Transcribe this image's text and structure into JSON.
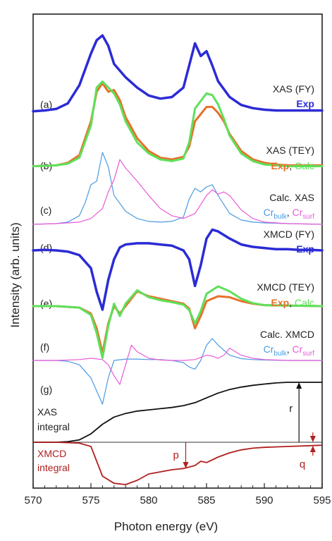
{
  "chart_data": {
    "type": "line",
    "ylabel": "Intensity (arb. units)",
    "xlabel": "Photon energy (eV)",
    "xlim": [
      570,
      595
    ],
    "xticks": [
      "570",
      "575",
      "580",
      "585",
      "590",
      "595"
    ],
    "grid": false,
    "colors": {
      "exp": "#2b2bd6",
      "exp_orange": "#e8702a",
      "calc": "#5ee05a",
      "cr_bulk": "#4b9be0",
      "cr_surf": "#e85ad8",
      "xas_integral": "#111111",
      "xmcd_integral": "#b0201f"
    },
    "panels": [
      {
        "id": "a",
        "tag": "(a)",
        "title": "XAS (FY)",
        "legend": [
          "Exp"
        ],
        "series": [
          {
            "name": "Exp",
            "color_key": "exp",
            "x": [
              570,
              571,
              572,
              573,
              574,
              575,
              575.5,
              576,
              576.5,
              577,
              578,
              579,
              580,
              581,
              582,
              583,
              584,
              584.5,
              585,
              585.5,
              586,
              587,
              588,
              589,
              590,
              591,
              592,
              593,
              594,
              595
            ],
            "y": [
              0.02,
              0.03,
              0.05,
              0.12,
              0.35,
              0.75,
              0.92,
              0.98,
              0.85,
              0.62,
              0.45,
              0.32,
              0.22,
              0.18,
              0.2,
              0.32,
              0.88,
              0.72,
              0.78,
              0.6,
              0.4,
              0.2,
              0.1,
              0.06,
              0.04,
              0.03,
              0.03,
              0.03,
              0.03,
              0.03
            ]
          }
        ]
      },
      {
        "id": "b",
        "tag": "(b)",
        "title": "XAS (TEY)",
        "legend": [
          "Exp",
          "Calc"
        ],
        "series": [
          {
            "name": "Exp",
            "color_key": "exp_orange",
            "x": [
              570,
              572,
              573,
              574,
              575,
              575.5,
              576,
              576.5,
              577,
              577.5,
              578,
              579,
              580,
              581,
              582,
              583,
              583.5,
              584,
              585,
              585.5,
              586,
              586.5,
              587,
              588,
              589,
              590,
              591,
              592,
              593,
              594,
              595
            ],
            "y": [
              0.02,
              0.03,
              0.06,
              0.15,
              0.55,
              0.9,
              1.0,
              0.9,
              0.92,
              0.8,
              0.6,
              0.35,
              0.2,
              0.12,
              0.1,
              0.13,
              0.25,
              0.55,
              0.72,
              0.72,
              0.65,
              0.55,
              0.4,
              0.2,
              0.1,
              0.06,
              0.04,
              0.03,
              0.03,
              0.03,
              0.03
            ]
          },
          {
            "name": "Calc",
            "color_key": "calc",
            "x": [
              570,
              572,
              573,
              574,
              575,
              575.5,
              576,
              576.5,
              577,
              577.5,
              578,
              579,
              580,
              581,
              582,
              583,
              583.5,
              584,
              585,
              585.5,
              586,
              586.5,
              587,
              588,
              589,
              590,
              591,
              592,
              593,
              594,
              595
            ],
            "y": [
              0.02,
              0.03,
              0.05,
              0.12,
              0.5,
              0.95,
              1.02,
              0.95,
              0.88,
              0.75,
              0.55,
              0.3,
              0.17,
              0.1,
              0.08,
              0.11,
              0.3,
              0.7,
              0.88,
              0.86,
              0.75,
              0.58,
              0.38,
              0.17,
              0.08,
              0.04,
              0.03,
              0.02,
              0.02,
              0.02,
              0.02
            ]
          }
        ]
      },
      {
        "id": "c",
        "tag": "(c)",
        "title": "Calc. XAS",
        "legend": [
          "Cr",
          "Cr"
        ],
        "legend_sub": [
          "bulk",
          "surf"
        ],
        "series": [
          {
            "name": "Crbulk",
            "color_key": "cr_bulk",
            "x": [
              570,
              572,
              573,
              574,
              574.5,
              575,
              575.5,
              576,
              576.5,
              577,
              578,
              579,
              580,
              581,
              582,
              583,
              583.5,
              584,
              584.5,
              585,
              585.5,
              586,
              587,
              588,
              589,
              590,
              592,
              595
            ],
            "y": [
              0.0,
              0.01,
              0.03,
              0.12,
              0.3,
              0.55,
              0.6,
              1.0,
              0.8,
              0.4,
              0.18,
              0.08,
              0.04,
              0.03,
              0.04,
              0.1,
              0.35,
              0.5,
              0.45,
              0.52,
              0.55,
              0.4,
              0.15,
              0.06,
              0.03,
              0.02,
              0.01,
              0.0
            ]
          },
          {
            "name": "Crsurf",
            "color_key": "cr_surf",
            "x": [
              570,
              572,
              574,
              575,
              576,
              576.5,
              577,
              577.5,
              578,
              579,
              580,
              581,
              582,
              583,
              584,
              585,
              585.5,
              586,
              586.5,
              587,
              588,
              589,
              590,
              592,
              595
            ],
            "y": [
              0.0,
              0.01,
              0.03,
              0.08,
              0.22,
              0.45,
              0.62,
              0.9,
              0.78,
              0.6,
              0.4,
              0.22,
              0.12,
              0.08,
              0.15,
              0.4,
              0.48,
              0.42,
              0.45,
              0.4,
              0.2,
              0.08,
              0.03,
              0.01,
              0.0
            ]
          }
        ]
      },
      {
        "id": "d",
        "tag": "(d)",
        "title": "XMCD (FY)",
        "legend": [
          "Exp"
        ],
        "series": [
          {
            "name": "Exp",
            "color_key": "exp",
            "x": [
              570,
              571,
              572,
              573,
              574,
              575,
              575.5,
              576,
              576.5,
              577,
              577.5,
              578,
              579,
              580,
              581,
              582,
              583,
              583.5,
              584,
              584.5,
              585,
              585.5,
              586,
              587,
              588,
              589,
              590,
              591,
              592,
              593,
              594,
              595
            ],
            "y": [
              0.0,
              0.01,
              0.0,
              -0.02,
              -0.08,
              -0.3,
              -0.7,
              -1.0,
              -0.5,
              -0.15,
              0.05,
              0.1,
              0.12,
              0.12,
              0.1,
              0.08,
              0.0,
              -0.15,
              -0.6,
              -0.25,
              0.2,
              0.35,
              0.32,
              0.2,
              0.1,
              0.06,
              0.04,
              0.02,
              0.02,
              0.01,
              0.01,
              0.0
            ]
          }
        ]
      },
      {
        "id": "e",
        "tag": "(e)",
        "title": "XMCD (TEY)",
        "legend": [
          "Exp",
          "Calc"
        ],
        "series": [
          {
            "name": "Exp",
            "color_key": "exp_orange",
            "x": [
              570,
              572,
              574,
              575,
              575.5,
              576,
              576.5,
              577,
              577.5,
              578,
              579,
              580,
              581,
              582,
              583,
              583.5,
              584,
              584.5,
              585,
              586,
              587,
              588,
              589,
              590,
              592,
              595
            ],
            "y": [
              0.0,
              0.0,
              -0.03,
              -0.15,
              -0.45,
              -0.95,
              -0.35,
              0.0,
              -0.15,
              0.0,
              0.3,
              0.2,
              0.15,
              0.1,
              0.05,
              -0.05,
              -0.45,
              -0.2,
              0.1,
              0.2,
              0.18,
              0.1,
              0.05,
              0.02,
              0.01,
              0.0
            ]
          },
          {
            "name": "Calc",
            "color_key": "calc",
            "x": [
              570,
              572,
              574,
              575,
              575.5,
              576,
              576.5,
              577,
              577.5,
              578,
              579,
              580,
              581,
              582,
              583,
              583.5,
              584,
              584.5,
              585,
              586,
              587,
              588,
              589,
              590,
              592,
              595
            ],
            "y": [
              0.0,
              0.0,
              -0.03,
              -0.18,
              -0.55,
              -1.05,
              -0.4,
              0.05,
              -0.2,
              0.05,
              0.32,
              0.18,
              0.12,
              0.08,
              0.03,
              -0.08,
              -0.35,
              -0.1,
              0.25,
              0.4,
              0.3,
              0.15,
              0.06,
              0.02,
              0.01,
              0.0
            ]
          }
        ]
      },
      {
        "id": "f",
        "tag": "(f)",
        "title": "Calc. XMCD",
        "legend": [
          "Cr",
          "Cr"
        ],
        "legend_sub": [
          "bulk",
          "surf"
        ],
        "series": [
          {
            "name": "Crbulk",
            "color_key": "cr_bulk",
            "x": [
              570,
              572,
              573,
              574,
              575,
              575.5,
              576,
              576.5,
              577,
              578,
              579,
              580,
              581,
              582,
              583,
              583.5,
              584,
              584.5,
              585,
              585.5,
              586,
              587,
              588,
              589,
              590,
              592,
              595
            ],
            "y": [
              0.0,
              0.0,
              -0.02,
              -0.1,
              -0.4,
              -0.7,
              -1.0,
              -0.4,
              0.0,
              0.03,
              0.03,
              0.02,
              0.02,
              0.0,
              -0.05,
              -0.15,
              -0.2,
              0.0,
              0.35,
              0.5,
              0.35,
              0.12,
              0.04,
              0.02,
              0.01,
              0.0,
              0.0
            ]
          },
          {
            "name": "Crsurf",
            "color_key": "cr_surf",
            "x": [
              570,
              572,
              574,
              575,
              576,
              576.5,
              577,
              577.5,
              578,
              578.5,
              579,
              580,
              581,
              582,
              583,
              584,
              585,
              585.5,
              586,
              586.5,
              587,
              588,
              589,
              590,
              592,
              595
            ],
            "y": [
              0.0,
              0.0,
              0.02,
              0.05,
              0.02,
              -0.1,
              -0.35,
              -0.55,
              -0.1,
              0.35,
              0.2,
              0.05,
              0.01,
              0.0,
              0.0,
              0.02,
              0.12,
              0.1,
              0.05,
              0.12,
              0.28,
              0.12,
              0.05,
              0.02,
              0.0,
              0.0
            ]
          }
        ]
      },
      {
        "id": "g",
        "tag": "(g)",
        "labels": {
          "xas_integral": [
            "XAS",
            "integral"
          ],
          "xmcd_integral": [
            "XMCD",
            "integral"
          ],
          "r": "r",
          "p": "p",
          "q": "q"
        },
        "series": [
          {
            "name": "XAS integral",
            "color_key": "xas_integral",
            "x": [
              570,
              572,
              573,
              574,
              575,
              576,
              577,
              578,
              579,
              580,
              581,
              582,
              583,
              584,
              585,
              586,
              587,
              588,
              589,
              590,
              591,
              592,
              593,
              594,
              595
            ],
            "y": [
              0.0,
              0.0,
              0.01,
              0.04,
              0.14,
              0.3,
              0.42,
              0.48,
              0.52,
              0.54,
              0.56,
              0.58,
              0.61,
              0.66,
              0.74,
              0.82,
              0.88,
              0.92,
              0.95,
              0.97,
              0.99,
              1.0,
              1.0,
              1.0,
              1.0
            ]
          },
          {
            "name": "XMCD integral",
            "color_key": "xmcd_integral",
            "x": [
              570,
              572,
              574,
              575,
              575.5,
              576,
              577,
              578,
              579,
              580,
              581,
              582,
              583,
              584,
              584.5,
              585,
              586,
              587,
              588,
              589,
              590,
              592,
              594,
              595
            ],
            "y": [
              0.0,
              0.0,
              -0.02,
              -0.1,
              -0.45,
              -0.8,
              -0.97,
              -1.0,
              -0.9,
              -0.75,
              -0.7,
              -0.65,
              -0.62,
              -0.55,
              -0.45,
              -0.48,
              -0.35,
              -0.25,
              -0.18,
              -0.14,
              -0.12,
              -0.1,
              -0.08,
              -0.07
            ]
          }
        ]
      }
    ]
  }
}
